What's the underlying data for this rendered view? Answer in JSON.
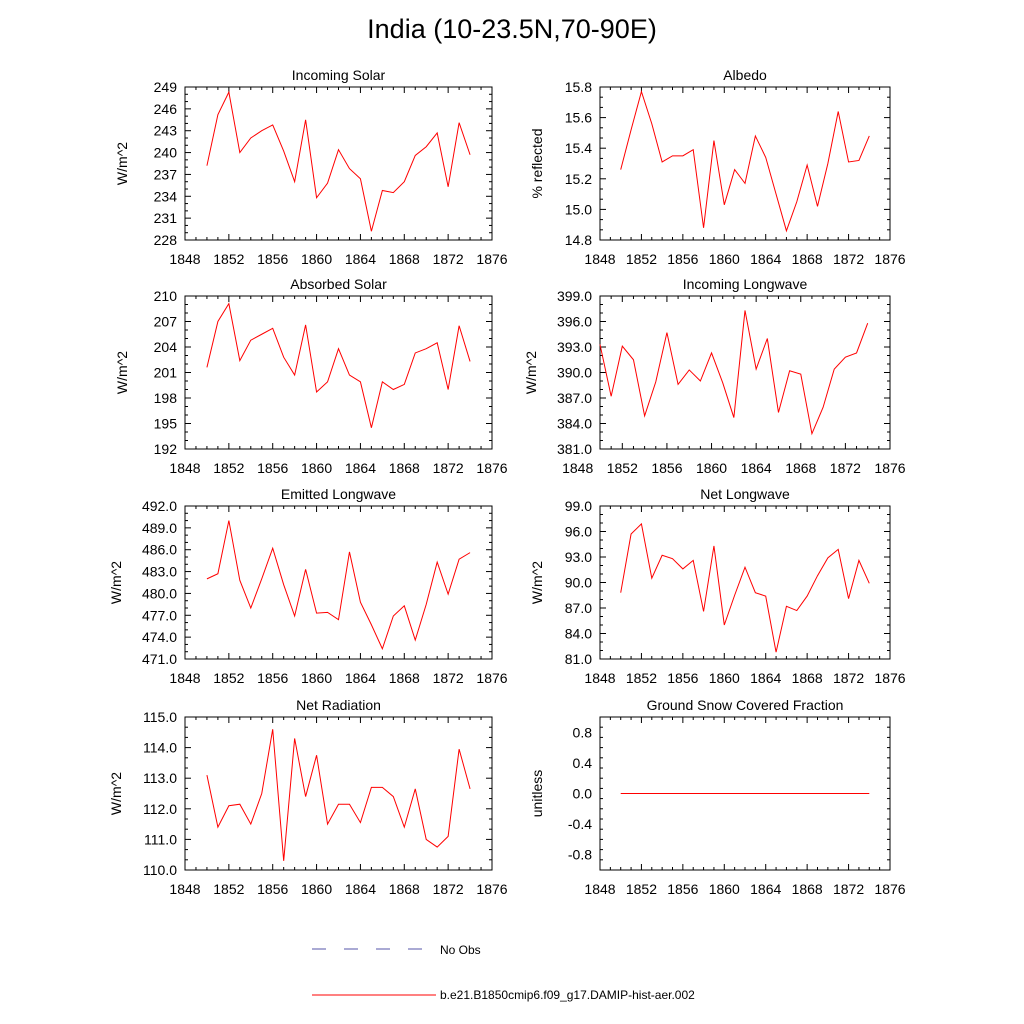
{
  "page": {
    "title": "India (10-23.5N,70-90E)"
  },
  "colors": {
    "model": "#ff0000",
    "obs": "#5555aa",
    "axis": "#000000"
  },
  "legend": {
    "obs_label": "No Obs",
    "model_label": "b.e21.B1850cmip6.f09_g17.DAMIP-hist-aer.002"
  },
  "chart_data": [
    {
      "type": "line",
      "title": "Incoming Solar",
      "ylabel": "W/m^2",
      "xlim": [
        1848,
        1876
      ],
      "ylim": [
        228,
        249
      ],
      "xticks": [
        1848,
        1852,
        1856,
        1860,
        1864,
        1868,
        1872,
        1876
      ],
      "yticks": [
        228,
        231,
        234,
        237,
        240,
        243,
        246,
        249
      ],
      "ytick_labels": [
        "228",
        "231",
        "234",
        "237",
        "240",
        "243",
        "246",
        "249"
      ],
      "x": [
        1850,
        1851,
        1852,
        1853,
        1854,
        1855,
        1856,
        1857,
        1858,
        1859,
        1860,
        1861,
        1862,
        1863,
        1864,
        1865,
        1866,
        1867,
        1868,
        1869,
        1870,
        1871,
        1872,
        1873,
        1874
      ],
      "series": [
        {
          "name": "b.e21.B1850cmip6.f09_g17.DAMIP-hist-aer.002",
          "values": [
            238.2,
            245.2,
            248.3,
            240.0,
            242.0,
            243.0,
            243.8,
            240.2,
            236.0,
            244.5,
            233.8,
            235.8,
            240.4,
            237.8,
            236.4,
            229.2,
            234.8,
            234.5,
            236.0,
            239.6,
            240.8,
            242.7,
            235.3,
            244.1,
            239.7
          ]
        }
      ]
    },
    {
      "type": "line",
      "title": "Albedo",
      "ylabel": "% reflected",
      "xlim": [
        1848,
        1876
      ],
      "ylim": [
        14.8,
        15.8
      ],
      "xticks": [
        1848,
        1852,
        1856,
        1860,
        1864,
        1868,
        1872,
        1876
      ],
      "yticks": [
        14.8,
        15.0,
        15.2,
        15.4,
        15.6,
        15.8
      ],
      "ytick_labels": [
        "14.8",
        "15.0",
        "15.2",
        "15.4",
        "15.6",
        "15.8"
      ],
      "x": [
        1850,
        1851,
        1852,
        1853,
        1854,
        1855,
        1856,
        1857,
        1858,
        1859,
        1860,
        1861,
        1862,
        1863,
        1864,
        1865,
        1866,
        1867,
        1868,
        1869,
        1870,
        1871,
        1872,
        1873,
        1874
      ],
      "series": [
        {
          "name": "b.e21.B1850cmip6.f09_g17.DAMIP-hist-aer.002",
          "values": [
            15.26,
            15.52,
            15.77,
            15.56,
            15.31,
            15.35,
            15.35,
            15.39,
            14.88,
            15.45,
            15.03,
            15.26,
            15.17,
            15.48,
            15.34,
            15.1,
            14.86,
            15.05,
            15.29,
            15.02,
            15.3,
            15.64,
            15.31,
            15.32,
            15.48
          ]
        }
      ]
    },
    {
      "type": "line",
      "title": "Absorbed Solar",
      "ylabel": "W/m^2",
      "xlim": [
        1848,
        1876
      ],
      "ylim": [
        192,
        210
      ],
      "xticks": [
        1848,
        1852,
        1856,
        1860,
        1864,
        1868,
        1872,
        1876
      ],
      "yticks": [
        192,
        195,
        198,
        201,
        204,
        207,
        210
      ],
      "ytick_labels": [
        "192",
        "195",
        "198",
        "201",
        "204",
        "207",
        "210"
      ],
      "x": [
        1850,
        1851,
        1852,
        1853,
        1854,
        1855,
        1856,
        1857,
        1858,
        1859,
        1860,
        1861,
        1862,
        1863,
        1864,
        1865,
        1866,
        1867,
        1868,
        1869,
        1870,
        1871,
        1872,
        1873,
        1874
      ],
      "series": [
        {
          "name": "b.e21.B1850cmip6.f09_g17.DAMIP-hist-aer.002",
          "values": [
            201.6,
            207.0,
            209.1,
            202.4,
            204.8,
            205.5,
            206.2,
            202.8,
            200.7,
            206.6,
            198.7,
            199.9,
            203.8,
            200.7,
            199.9,
            194.5,
            199.9,
            199.0,
            199.6,
            203.3,
            203.8,
            204.5,
            199.0,
            206.5,
            202.3
          ]
        }
      ]
    },
    {
      "type": "line",
      "title": "Incoming Longwave",
      "ylabel": "W/m^2",
      "xlim": [
        1850,
        1876
      ],
      "ylim": [
        381.0,
        399.0
      ],
      "xticks": [
        1848,
        1852,
        1856,
        1860,
        1864,
        1868,
        1872,
        1876
      ],
      "yticks": [
        381.0,
        384.0,
        387.0,
        390.0,
        393.0,
        396.0,
        399.0
      ],
      "ytick_labels": [
        "381.0",
        "384.0",
        "387.0",
        "390.0",
        "393.0",
        "396.0",
        "399.0"
      ],
      "x": [
        1850,
        1851,
        1852,
        1853,
        1854,
        1855,
        1856,
        1857,
        1858,
        1859,
        1860,
        1861,
        1862,
        1863,
        1864,
        1865,
        1866,
        1867,
        1868,
        1869,
        1870,
        1871,
        1872,
        1873,
        1874
      ],
      "series": [
        {
          "name": "b.e21.B1850cmip6.f09_g17.DAMIP-hist-aer.002",
          "values": [
            393.3,
            387.2,
            393.1,
            391.5,
            384.9,
            388.9,
            394.7,
            388.6,
            390.3,
            389.0,
            392.3,
            388.8,
            384.7,
            397.3,
            390.4,
            394.0,
            385.3,
            390.2,
            389.8,
            382.8,
            385.9,
            390.4,
            391.8,
            392.3,
            395.8
          ]
        }
      ]
    },
    {
      "type": "line",
      "title": "Emitted Longwave",
      "ylabel": "W/m^2",
      "xlim": [
        1848,
        1876
      ],
      "ylim": [
        471.0,
        492.0
      ],
      "xticks": [
        1848,
        1852,
        1856,
        1860,
        1864,
        1868,
        1872,
        1876
      ],
      "yticks": [
        471.0,
        474.0,
        477.0,
        480.0,
        483.0,
        486.0,
        489.0,
        492.0
      ],
      "ytick_labels": [
        "471.0",
        "474.0",
        "477.0",
        "480.0",
        "483.0",
        "486.0",
        "489.0",
        "492.0"
      ],
      "x": [
        1850,
        1851,
        1852,
        1853,
        1854,
        1855,
        1856,
        1857,
        1858,
        1859,
        1860,
        1861,
        1862,
        1863,
        1864,
        1865,
        1866,
        1867,
        1868,
        1869,
        1870,
        1871,
        1872,
        1873,
        1874
      ],
      "series": [
        {
          "name": "b.e21.B1850cmip6.f09_g17.DAMIP-hist-aer.002",
          "values": [
            482.0,
            482.7,
            490.0,
            481.8,
            478.0,
            482.0,
            486.2,
            481.2,
            476.9,
            483.3,
            477.3,
            477.4,
            476.4,
            485.7,
            478.8,
            475.7,
            472.4,
            476.9,
            478.3,
            473.6,
            478.5,
            484.3,
            479.9,
            484.7,
            485.6
          ]
        }
      ]
    },
    {
      "type": "line",
      "title": "Net Longwave",
      "ylabel": "W/m^2",
      "xlim": [
        1848,
        1876
      ],
      "ylim": [
        81.0,
        99.0
      ],
      "xticks": [
        1848,
        1852,
        1856,
        1860,
        1864,
        1868,
        1872,
        1876
      ],
      "yticks": [
        81.0,
        84.0,
        87.0,
        90.0,
        93.0,
        96.0,
        99.0
      ],
      "ytick_labels": [
        "81.0",
        "84.0",
        "87.0",
        "90.0",
        "93.0",
        "96.0",
        "99.0"
      ],
      "x": [
        1850,
        1851,
        1852,
        1853,
        1854,
        1855,
        1856,
        1857,
        1858,
        1859,
        1860,
        1861,
        1862,
        1863,
        1864,
        1865,
        1866,
        1867,
        1868,
        1869,
        1870,
        1871,
        1872,
        1873,
        1874
      ],
      "series": [
        {
          "name": "b.e21.B1850cmip6.f09_g17.DAMIP-hist-aer.002",
          "values": [
            88.8,
            95.7,
            96.9,
            90.5,
            93.2,
            92.8,
            91.6,
            92.6,
            86.6,
            94.3,
            85.0,
            88.5,
            91.8,
            88.8,
            88.4,
            81.8,
            87.2,
            86.7,
            88.4,
            90.8,
            92.9,
            93.9,
            88.1,
            92.6,
            89.9
          ]
        }
      ]
    },
    {
      "type": "line",
      "title": "Net Radiation",
      "ylabel": "W/m^2",
      "xlim": [
        1848,
        1876
      ],
      "ylim": [
        110.0,
        115.0
      ],
      "xticks": [
        1848,
        1852,
        1856,
        1860,
        1864,
        1868,
        1872,
        1876
      ],
      "yticks": [
        110.0,
        111.0,
        112.0,
        113.0,
        114.0,
        115.0
      ],
      "ytick_labels": [
        "110.0",
        "111.0",
        "112.0",
        "113.0",
        "114.0",
        "115.0"
      ],
      "x": [
        1850,
        1851,
        1852,
        1853,
        1854,
        1855,
        1856,
        1857,
        1858,
        1859,
        1860,
        1861,
        1862,
        1863,
        1864,
        1865,
        1866,
        1867,
        1868,
        1869,
        1870,
        1871,
        1872,
        1873,
        1874
      ],
      "series": [
        {
          "name": "b.e21.B1850cmip6.f09_g17.DAMIP-hist-aer.002",
          "values": [
            113.1,
            111.4,
            112.1,
            112.15,
            111.5,
            112.5,
            114.6,
            110.3,
            114.3,
            112.4,
            113.75,
            111.5,
            112.15,
            112.15,
            111.55,
            112.7,
            112.7,
            112.4,
            111.4,
            112.65,
            111.0,
            110.75,
            111.1,
            113.95,
            112.65
          ]
        }
      ]
    },
    {
      "type": "line",
      "title": "Ground Snow Covered Fraction",
      "ylabel": "unitless",
      "xlim": [
        1848,
        1876
      ],
      "ylim": [
        -1.0,
        1.0
      ],
      "xticks": [
        1848,
        1852,
        1856,
        1860,
        1864,
        1868,
        1872,
        1876
      ],
      "yticks": [
        -0.8,
        -0.4,
        0.0,
        0.4,
        0.8
      ],
      "ytick_labels": [
        "-0.8",
        "-0.4",
        "0.0",
        "0.4",
        "0.8"
      ],
      "x": [
        1850,
        1874
      ],
      "series": [
        {
          "name": "b.e21.B1850cmip6.f09_g17.DAMIP-hist-aer.002",
          "values": [
            0.0,
            0.0
          ]
        }
      ]
    }
  ]
}
